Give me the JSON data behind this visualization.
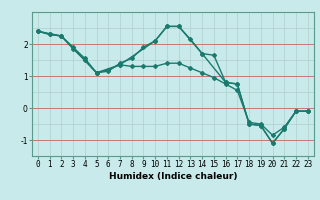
{
  "xlabel": "Humidex (Indice chaleur)",
  "background_color": "#c8eaea",
  "grid_color": "#b0d0d0",
  "red_line_color": "#cc6666",
  "line_color": "#1a7a6e",
  "marker": "D",
  "markersize": 2,
  "linewidth": 1.0,
  "series": [
    {
      "x": [
        0,
        1,
        2,
        3,
        4,
        5,
        6,
        7,
        8,
        9,
        10,
        11,
        12,
        13,
        14,
        15,
        16,
        17,
        18,
        19,
        20,
        21,
        22,
        23
      ],
      "y": [
        2.4,
        2.3,
        2.25,
        1.9,
        1.55,
        1.1,
        1.2,
        1.35,
        1.3,
        1.3,
        1.3,
        1.4,
        1.4,
        1.25,
        1.1,
        0.95,
        0.75,
        0.55,
        -0.45,
        -0.5,
        -0.85,
        -0.6,
        -0.1,
        -0.1
      ]
    },
    {
      "x": [
        0,
        1,
        2,
        3,
        4,
        5,
        6,
        7,
        8,
        9,
        10,
        11,
        12,
        13,
        14,
        15,
        16,
        17,
        18,
        19,
        20,
        21,
        22,
        23
      ],
      "y": [
        2.4,
        2.3,
        2.25,
        1.85,
        1.5,
        1.1,
        1.15,
        1.4,
        1.55,
        1.9,
        2.1,
        2.55,
        2.55,
        2.15,
        1.7,
        1.65,
        0.8,
        0.75,
        -0.5,
        -0.55,
        -1.1,
        -0.65,
        -0.1,
        -0.1
      ]
    },
    {
      "x": [
        0,
        2,
        5,
        7,
        10,
        11,
        12,
        14,
        16,
        17,
        18,
        19,
        20,
        21,
        22,
        23
      ],
      "y": [
        2.4,
        2.25,
        1.1,
        1.35,
        2.1,
        2.55,
        2.55,
        1.7,
        0.8,
        0.75,
        -0.5,
        -0.55,
        -1.1,
        -0.65,
        -0.1,
        -0.1
      ]
    }
  ],
  "xlim": [
    -0.5,
    23.5
  ],
  "ylim": [
    -1.5,
    3.0
  ],
  "yticks": [
    -1,
    0,
    1,
    2
  ],
  "xticks": [
    0,
    1,
    2,
    3,
    4,
    5,
    6,
    7,
    8,
    9,
    10,
    11,
    12,
    13,
    14,
    15,
    16,
    17,
    18,
    19,
    20,
    21,
    22,
    23
  ],
  "xlabel_fontsize": 6.5,
  "tick_fontsize": 5.5
}
